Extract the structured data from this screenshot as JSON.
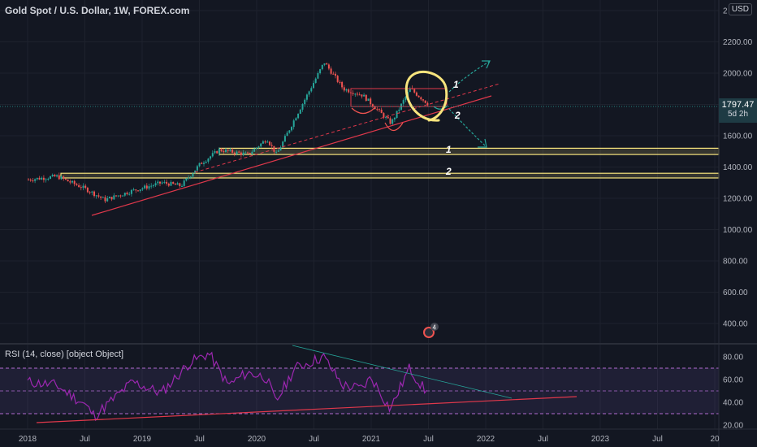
{
  "header": {
    "title": "Gold Spot / U.S. Dollar, 1W, FOREX.com",
    "currency": "USD",
    "price_badge": "1797.47",
    "price_badge_sub": "5d 2h"
  },
  "rsi": {
    "label": "RSI (14, close) [object Object]"
  },
  "annotations": {
    "label_1": "1",
    "label_2": "2",
    "event_badge": "4"
  },
  "colors": {
    "background": "#131722",
    "up": "#26a69a",
    "down": "#ef5350",
    "trendline": "#e0384b",
    "zone": "#f7e47d",
    "rsi_line": "#9c27b0",
    "current_price": "#26a69a"
  },
  "chart_data": [
    {
      "type": "candlestick",
      "title": "Gold Spot / U.S. Dollar, 1W, FOREX.com",
      "y_ticks": [
        "2400.00",
        "2200.00",
        "2000.00",
        "1800.00",
        "1600.00",
        "1400.00",
        "1200.00",
        "1000.00",
        "800.00",
        "600.00",
        "400.00"
      ],
      "x_ticks": [
        "2018",
        "Jul",
        "2019",
        "Jul",
        "2020",
        "Jul",
        "2021",
        "Jul",
        "2022",
        "Jul",
        "2023",
        "Jul",
        "20"
      ],
      "ylim": [
        200,
        2400
      ],
      "current_price": 1797.47,
      "support_zones": [
        {
          "label": "1",
          "low": 1480,
          "high": 1520
        },
        {
          "label": "2",
          "low": 1330,
          "high": 1360
        }
      ],
      "series": [
        {
          "x": [
            "2018-01",
            "2018-04",
            "2018-07",
            "2018-09",
            "2018-12",
            "2019-03",
            "2019-05",
            "2019-07",
            "2019-09",
            "2019-12",
            "2020-02",
            "2020-03",
            "2020-05",
            "2020-08",
            "2020-10",
            "2020-12",
            "2021-03",
            "2021-05",
            "2021-07"
          ],
          "values": [
            1320,
            1340,
            1260,
            1190,
            1250,
            1300,
            1280,
            1420,
            1510,
            1480,
            1580,
            1480,
            1720,
            2070,
            1900,
            1860,
            1680,
            1900,
            1797
          ]
        }
      ]
    },
    {
      "type": "line",
      "title": "RSI (14, close) [object Object]",
      "y_ticks": [
        "80.00",
        "60.00",
        "40.00",
        "20.00"
      ],
      "ylim": [
        15,
        85
      ],
      "bands": [
        30,
        50,
        70
      ],
      "series": [
        {
          "x": [
            "2018-01",
            "2018-04",
            "2018-07",
            "2018-08",
            "2018-12",
            "2019-03",
            "2019-06",
            "2019-08",
            "2019-10",
            "2019-12",
            "2020-02",
            "2020-03",
            "2020-05",
            "2020-08",
            "2020-10",
            "2020-12",
            "2021-01",
            "2021-03",
            "2021-05",
            "2021-07"
          ],
          "values": [
            58,
            55,
            38,
            28,
            58,
            48,
            75,
            83,
            55,
            66,
            62,
            40,
            70,
            80,
            55,
            52,
            62,
            34,
            70,
            46
          ]
        }
      ]
    }
  ]
}
